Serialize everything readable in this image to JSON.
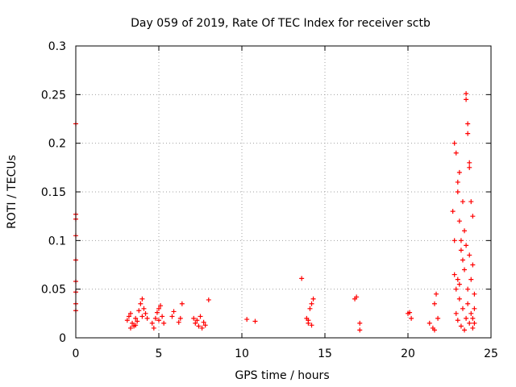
{
  "chart_data": {
    "type": "scatter",
    "title": "Day 059 of 2019, Rate Of TEC Index for receiver sctb",
    "xlabel": "GPS time / hours",
    "ylabel": "ROTI / TECUs",
    "xlim": [
      0,
      25
    ],
    "ylim": [
      0,
      0.3
    ],
    "x_ticks": [
      0,
      5,
      10,
      15,
      20,
      25
    ],
    "x_tick_labels": [
      "0",
      "5",
      "10",
      "15",
      "20",
      "25"
    ],
    "y_ticks": [
      0,
      0.05,
      0.1,
      0.15,
      0.2,
      0.25,
      0.3
    ],
    "y_tick_labels": [
      "0",
      "0.05",
      "0.1",
      "0.15",
      "0.2",
      "0.25",
      "0.3"
    ],
    "grid": true,
    "marker": "+",
    "series": [
      {
        "name": "ROTI",
        "color": "#ff0000",
        "points": [
          [
            0.0,
            0.22
          ],
          [
            0.0,
            0.127
          ],
          [
            0.0,
            0.122
          ],
          [
            0.0,
            0.105
          ],
          [
            0.0,
            0.08
          ],
          [
            0.0,
            0.058
          ],
          [
            0.0,
            0.047
          ],
          [
            0.0,
            0.035
          ],
          [
            0.0,
            0.028
          ],
          [
            3.1,
            0.018
          ],
          [
            3.2,
            0.022
          ],
          [
            3.3,
            0.025
          ],
          [
            3.4,
            0.015
          ],
          [
            3.5,
            0.012
          ],
          [
            3.6,
            0.02
          ],
          [
            3.7,
            0.017
          ],
          [
            3.8,
            0.028
          ],
          [
            3.9,
            0.035
          ],
          [
            4.0,
            0.04
          ],
          [
            4.1,
            0.03
          ],
          [
            4.2,
            0.025
          ],
          [
            4.3,
            0.02
          ],
          [
            3.3,
            0.01
          ],
          [
            3.6,
            0.013
          ],
          [
            4.0,
            0.022
          ],
          [
            4.6,
            0.015
          ],
          [
            4.8,
            0.02
          ],
          [
            4.9,
            0.026
          ],
          [
            5.0,
            0.03
          ],
          [
            5.1,
            0.033
          ],
          [
            5.2,
            0.022
          ],
          [
            4.7,
            0.01
          ],
          [
            5.3,
            0.015
          ],
          [
            5.0,
            0.018
          ],
          [
            5.8,
            0.022
          ],
          [
            5.9,
            0.027
          ],
          [
            6.3,
            0.02
          ],
          [
            6.4,
            0.035
          ],
          [
            6.2,
            0.016
          ],
          [
            7.1,
            0.02
          ],
          [
            7.2,
            0.015
          ],
          [
            7.4,
            0.012
          ],
          [
            7.5,
            0.022
          ],
          [
            7.6,
            0.01
          ],
          [
            7.8,
            0.013
          ],
          [
            7.3,
            0.018
          ],
          [
            7.7,
            0.016
          ],
          [
            8.0,
            0.039
          ],
          [
            10.3,
            0.019
          ],
          [
            10.8,
            0.017
          ],
          [
            13.6,
            0.061
          ],
          [
            13.9,
            0.02
          ],
          [
            14.0,
            0.015
          ],
          [
            14.1,
            0.03
          ],
          [
            14.2,
            0.035
          ],
          [
            14.3,
            0.04
          ],
          [
            14.0,
            0.018
          ],
          [
            14.2,
            0.013
          ],
          [
            16.8,
            0.04
          ],
          [
            16.9,
            0.042
          ],
          [
            17.1,
            0.015
          ],
          [
            17.1,
            0.008
          ],
          [
            20.0,
            0.025
          ],
          [
            20.1,
            0.026
          ],
          [
            20.2,
            0.02
          ],
          [
            21.3,
            0.015
          ],
          [
            21.5,
            0.01
          ],
          [
            21.6,
            0.035
          ],
          [
            21.7,
            0.045
          ],
          [
            21.8,
            0.02
          ],
          [
            21.6,
            0.008
          ],
          [
            22.8,
            0.2
          ],
          [
            22.9,
            0.19
          ],
          [
            23.0,
            0.16
          ],
          [
            23.0,
            0.15
          ],
          [
            23.1,
            0.12
          ],
          [
            23.2,
            0.1
          ],
          [
            23.3,
            0.08
          ],
          [
            23.4,
            0.07
          ],
          [
            23.5,
            0.251
          ],
          [
            23.5,
            0.245
          ],
          [
            23.6,
            0.22
          ],
          [
            23.6,
            0.21
          ],
          [
            23.7,
            0.18
          ],
          [
            23.7,
            0.175
          ],
          [
            23.8,
            0.14
          ],
          [
            23.9,
            0.125
          ],
          [
            23.4,
            0.11
          ],
          [
            23.2,
            0.09
          ],
          [
            23.0,
            0.06
          ],
          [
            22.9,
            0.05
          ],
          [
            23.1,
            0.04
          ],
          [
            23.3,
            0.03
          ],
          [
            23.5,
            0.02
          ],
          [
            23.7,
            0.015
          ],
          [
            23.9,
            0.01
          ],
          [
            23.6,
            0.05
          ],
          [
            23.8,
            0.06
          ],
          [
            24.0,
            0.03
          ],
          [
            22.8,
            0.1
          ],
          [
            22.7,
            0.13
          ],
          [
            23.1,
            0.17
          ],
          [
            23.3,
            0.14
          ],
          [
            23.5,
            0.095
          ],
          [
            23.7,
            0.085
          ],
          [
            23.9,
            0.075
          ],
          [
            24.0,
            0.045
          ],
          [
            22.9,
            0.025
          ],
          [
            23.2,
            0.012
          ],
          [
            23.4,
            0.008
          ],
          [
            23.6,
            0.035
          ],
          [
            23.8,
            0.025
          ],
          [
            23.0,
            0.018
          ],
          [
            22.8,
            0.065
          ],
          [
            23.1,
            0.055
          ],
          [
            23.9,
            0.02
          ],
          [
            24.0,
            0.015
          ]
        ]
      }
    ]
  }
}
